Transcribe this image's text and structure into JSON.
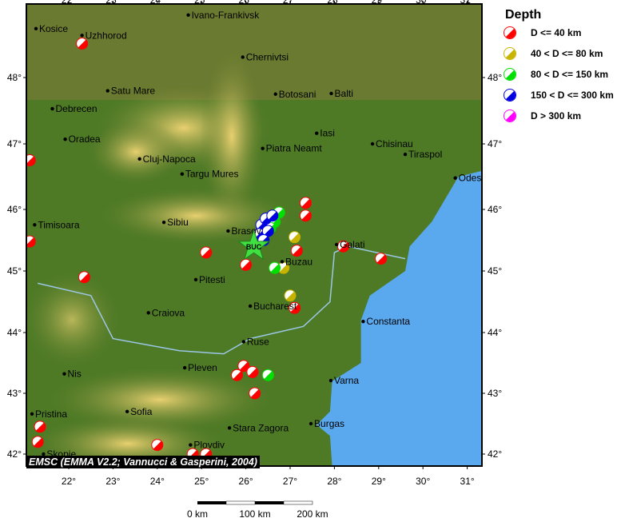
{
  "legend": {
    "title": "Depth",
    "items": [
      {
        "label": "D <= 40 km",
        "color": "#ff0000"
      },
      {
        "label": "40 < D <= 80 km",
        "color": "#c8b400"
      },
      {
        "label": "80 < D <= 150 km",
        "color": "#00e000"
      },
      {
        "label": "150 < D <= 300 km",
        "color": "#0000e0"
      },
      {
        "label": "D > 300 km",
        "color": "#ff00ff"
      }
    ]
  },
  "credit": "EMSC (EMMA V2.2; Vannucci & Gasperini, 2004)",
  "axes": {
    "lon_ticks": [
      "22°",
      "23°",
      "24°",
      "25°",
      "26°",
      "27°",
      "28°",
      "29°",
      "30°",
      "31°"
    ],
    "lat_ticks": [
      "42°",
      "43°",
      "44°",
      "45°",
      "46°",
      "47°",
      "48°"
    ],
    "lon_range": [
      21.05,
      31.4
    ],
    "lat_range": [
      41.8,
      49.1
    ]
  },
  "scalebar": {
    "labels": [
      "0 km",
      "100 km",
      "200 km"
    ]
  },
  "colors": {
    "sea": "#5aa8ee",
    "land": "#5a7a2a",
    "mountain": "#d8c060",
    "star": "#40e040"
  },
  "epicenter": {
    "label": "BUC",
    "lon": 26.18,
    "lat": 45.4
  },
  "cities": [
    {
      "name": "Kosice",
      "lon": 21.26,
      "lat": 48.72
    },
    {
      "name": "Uzhhorod",
      "lon": 22.3,
      "lat": 48.62
    },
    {
      "name": "Ivano-Frankivsk",
      "lon": 24.7,
      "lat": 48.92
    },
    {
      "name": "Chernivtsi",
      "lon": 25.93,
      "lat": 48.3
    },
    {
      "name": "Satu Mare",
      "lon": 22.88,
      "lat": 47.8
    },
    {
      "name": "Debrecen",
      "lon": 21.63,
      "lat": 47.53
    },
    {
      "name": "Botosani",
      "lon": 26.67,
      "lat": 47.75
    },
    {
      "name": "Balti",
      "lon": 27.93,
      "lat": 47.76
    },
    {
      "name": "Oradea",
      "lon": 21.92,
      "lat": 47.07
    },
    {
      "name": "Iasi",
      "lon": 27.6,
      "lat": 47.16
    },
    {
      "name": "Chisinau",
      "lon": 28.86,
      "lat": 47.0
    },
    {
      "name": "Tiraspol",
      "lon": 29.6,
      "lat": 46.84
    },
    {
      "name": "Cluj-Napoca",
      "lon": 23.6,
      "lat": 46.77
    },
    {
      "name": "Piatra Neamt",
      "lon": 26.38,
      "lat": 46.93
    },
    {
      "name": "Targu Mures",
      "lon": 24.56,
      "lat": 46.54
    },
    {
      "name": "Odes",
      "lon": 30.73,
      "lat": 46.48
    },
    {
      "name": "Timisoara",
      "lon": 21.23,
      "lat": 45.75
    },
    {
      "name": "Sibiu",
      "lon": 24.15,
      "lat": 45.79
    },
    {
      "name": "Brasov",
      "lon": 25.6,
      "lat": 45.65
    },
    {
      "name": "Galati",
      "lon": 28.05,
      "lat": 45.43
    },
    {
      "name": "Buzau",
      "lon": 26.82,
      "lat": 45.15
    },
    {
      "name": "Pitesti",
      "lon": 24.87,
      "lat": 44.86
    },
    {
      "name": "Craiova",
      "lon": 23.8,
      "lat": 44.32
    },
    {
      "name": "Bucharest",
      "lon": 26.1,
      "lat": 44.43
    },
    {
      "name": "Constanta",
      "lon": 28.65,
      "lat": 44.18
    },
    {
      "name": "Ruse",
      "lon": 25.95,
      "lat": 43.85
    },
    {
      "name": "Nis",
      "lon": 21.9,
      "lat": 43.32
    },
    {
      "name": "Pleven",
      "lon": 24.62,
      "lat": 43.42
    },
    {
      "name": "Varna",
      "lon": 27.92,
      "lat": 43.21
    },
    {
      "name": "Pristina",
      "lon": 21.17,
      "lat": 42.66
    },
    {
      "name": "Sofia",
      "lon": 23.32,
      "lat": 42.7
    },
    {
      "name": "Burgas",
      "lon": 27.47,
      "lat": 42.5
    },
    {
      "name": "Stara Zagora",
      "lon": 25.63,
      "lat": 42.43
    },
    {
      "name": "Skopje",
      "lon": 21.43,
      "lat": 42.0
    },
    {
      "name": "Plovdiv",
      "lon": 24.75,
      "lat": 42.15
    }
  ],
  "events": [
    {
      "lon": 22.3,
      "lat": 48.5,
      "d": 0
    },
    {
      "lon": 21.12,
      "lat": 46.75,
      "d": 0
    },
    {
      "lon": 21.12,
      "lat": 45.48,
      "d": 0
    },
    {
      "lon": 22.35,
      "lat": 44.9,
      "d": 0
    },
    {
      "lon": 25.1,
      "lat": 45.3,
      "d": 0
    },
    {
      "lon": 26.0,
      "lat": 45.1,
      "d": 0
    },
    {
      "lon": 27.35,
      "lat": 46.1,
      "d": 0
    },
    {
      "lon": 27.35,
      "lat": 45.9,
      "d": 0
    },
    {
      "lon": 27.15,
      "lat": 45.33,
      "d": 0
    },
    {
      "lon": 28.2,
      "lat": 45.4,
      "d": 0
    },
    {
      "lon": 29.05,
      "lat": 45.2,
      "d": 0
    },
    {
      "lon": 27.1,
      "lat": 44.4,
      "d": 0
    },
    {
      "lon": 25.8,
      "lat": 43.3,
      "d": 0
    },
    {
      "lon": 25.95,
      "lat": 43.45,
      "d": 0
    },
    {
      "lon": 26.15,
      "lat": 43.35,
      "d": 0
    },
    {
      "lon": 26.2,
      "lat": 43.0,
      "d": 0
    },
    {
      "lon": 21.35,
      "lat": 42.45,
      "d": 0
    },
    {
      "lon": 21.3,
      "lat": 42.2,
      "d": 0
    },
    {
      "lon": 24.0,
      "lat": 42.15,
      "d": 0
    },
    {
      "lon": 24.8,
      "lat": 42.0,
      "d": 0
    },
    {
      "lon": 25.1,
      "lat": 42.0,
      "d": 0
    },
    {
      "lon": 27.1,
      "lat": 45.55,
      "d": 1
    },
    {
      "lon": 26.85,
      "lat": 45.05,
      "d": 1
    },
    {
      "lon": 27.0,
      "lat": 44.6,
      "d": 1
    },
    {
      "lon": 26.65,
      "lat": 45.8,
      "d": 2
    },
    {
      "lon": 26.75,
      "lat": 45.95,
      "d": 2
    },
    {
      "lon": 26.55,
      "lat": 45.7,
      "d": 2
    },
    {
      "lon": 26.65,
      "lat": 45.05,
      "d": 2
    },
    {
      "lon": 26.5,
      "lat": 43.3,
      "d": 2
    },
    {
      "lon": 26.35,
      "lat": 45.75,
      "d": 3
    },
    {
      "lon": 26.45,
      "lat": 45.85,
      "d": 3
    },
    {
      "lon": 26.3,
      "lat": 45.6,
      "d": 3
    },
    {
      "lon": 26.5,
      "lat": 45.65,
      "d": 3
    },
    {
      "lon": 26.6,
      "lat": 45.9,
      "d": 3
    },
    {
      "lon": 26.4,
      "lat": 45.5,
      "d": 3
    }
  ]
}
